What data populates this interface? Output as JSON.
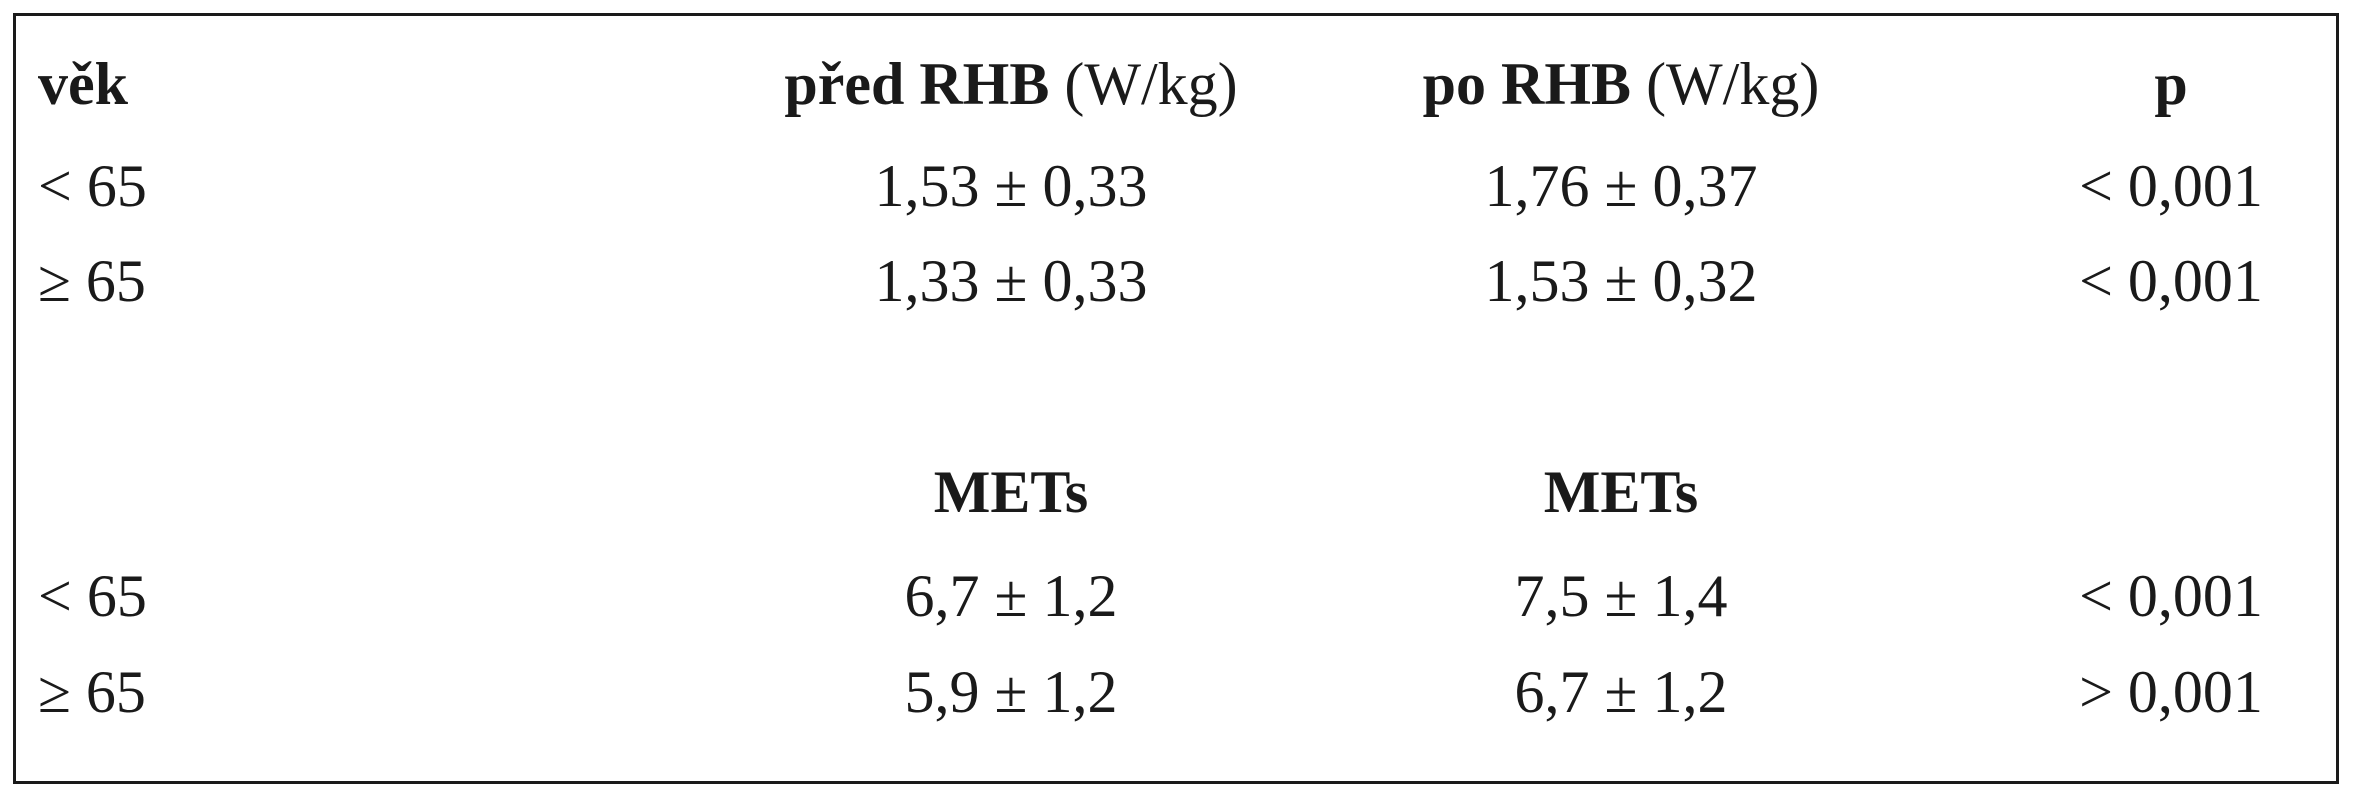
{
  "table": {
    "header1": {
      "age": "věk",
      "before": "před RHB",
      "before_unit": "(W/kg)",
      "after": "po RHB",
      "after_unit": "(W/kg)",
      "p": "p"
    },
    "section1_rows": [
      {
        "age": "< 65",
        "before": "1,53 ± 0,33",
        "after": "1,76 ± 0,37",
        "p": "< 0,001"
      },
      {
        "age": "≥ 65",
        "before": "1,33 ± 0,33",
        "after": "1,53 ± 0,32",
        "p": "< 0,001"
      }
    ],
    "header2": {
      "before": "METs",
      "after": "METs"
    },
    "section2_rows": [
      {
        "age": "< 65",
        "before": "6,7 ± 1,2",
        "after": "7,5 ± 1,4",
        "p": "< 0,001"
      },
      {
        "age": "≥ 65",
        "before": "5,9 ± 1,2",
        "after": "6,7 ± 1,2",
        "p": "> 0,001"
      }
    ]
  }
}
